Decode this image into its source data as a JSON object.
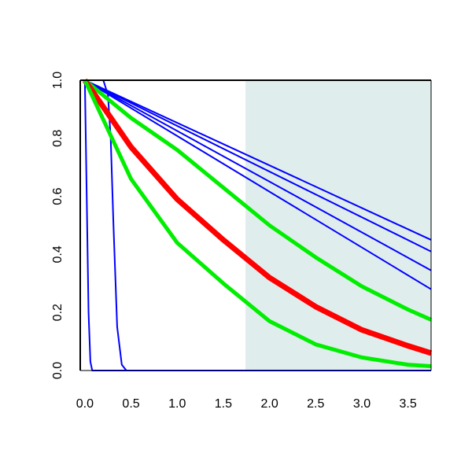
{
  "chart_data": {
    "type": "line",
    "title": "",
    "xlabel": "",
    "ylabel": "",
    "xlim": [
      -0.05,
      3.75
    ],
    "ylim": [
      0.0,
      1.0
    ],
    "x_ticks": [
      0.0,
      0.5,
      1.0,
      1.5,
      2.0,
      2.5,
      3.0,
      3.5
    ],
    "x_tick_labels": [
      "0.0",
      "0.5",
      "1.0",
      "1.5",
      "2.0",
      "2.5",
      "3.0",
      "3.5"
    ],
    "y_ticks": [
      0.0,
      0.2,
      0.4,
      0.6,
      0.8,
      1.0
    ],
    "y_tick_labels": [
      "0.0",
      "0.2",
      "0.4",
      "0.6",
      "0.8",
      "1.0"
    ],
    "grid": false,
    "shaded_region": {
      "x_from": 1.74,
      "x_to": 3.75,
      "color": "#e0eded"
    },
    "series": [
      {
        "color": "#0000ff",
        "style": "thin",
        "x": [
          0.0,
          0.02,
          0.04,
          0.06,
          0.08,
          3.75
        ],
        "y": [
          1.0,
          0.6,
          0.2,
          0.03,
          0.0,
          0.0
        ]
      },
      {
        "color": "#0000ff",
        "style": "thin",
        "x": [
          0.0,
          0.2,
          0.25,
          0.28,
          0.31,
          0.35,
          0.4,
          0.45,
          3.75
        ],
        "y": [
          1.0,
          1.0,
          0.95,
          0.8,
          0.5,
          0.15,
          0.02,
          0.0,
          0.0
        ]
      },
      {
        "color": "#0000ff",
        "style": "thin",
        "x": [
          0.0,
          3.75
        ],
        "y": [
          1.0,
          0.45
        ]
      },
      {
        "color": "#0000ff",
        "style": "thin",
        "x": [
          0.0,
          3.75
        ],
        "y": [
          1.0,
          0.41
        ]
      },
      {
        "color": "#0000ff",
        "style": "thin",
        "x": [
          0.0,
          3.75
        ],
        "y": [
          1.0,
          0.345
        ]
      },
      {
        "color": "#0000ff",
        "style": "thin",
        "x": [
          0.0,
          3.75
        ],
        "y": [
          1.0,
          0.28
        ]
      },
      {
        "color": "#00ee00",
        "style": "thick",
        "x": [
          0.0,
          0.5,
          1.0,
          1.5,
          2.0,
          2.5,
          3.0,
          3.5,
          3.75
        ],
        "y": [
          1.0,
          0.87,
          0.76,
          0.63,
          0.5,
          0.39,
          0.29,
          0.21,
          0.175
        ]
      },
      {
        "color": "#ff0000",
        "style": "thickest",
        "x": [
          0.0,
          0.5,
          1.0,
          1.5,
          2.0,
          2.5,
          3.0,
          3.5,
          3.75
        ],
        "y": [
          1.0,
          0.77,
          0.59,
          0.45,
          0.32,
          0.22,
          0.14,
          0.085,
          0.06
        ]
      },
      {
        "color": "#00ee00",
        "style": "thick",
        "x": [
          0.0,
          0.5,
          1.0,
          1.5,
          2.0,
          2.5,
          3.0,
          3.5,
          3.75
        ],
        "y": [
          1.0,
          0.66,
          0.44,
          0.3,
          0.17,
          0.09,
          0.045,
          0.02,
          0.015
        ]
      }
    ]
  }
}
